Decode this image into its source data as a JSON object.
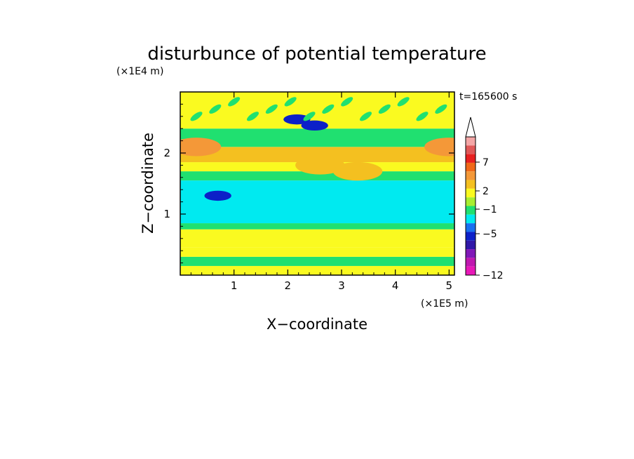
{
  "chart_data": {
    "type": "heatmap",
    "title": "disturbunce of potential temperature",
    "time_label": "t=165600 s",
    "xlabel": "X−coordinate",
    "ylabel": "Z−coordinate",
    "x_unit": "(×1E5 m)",
    "y_unit": "(×1E4 m)",
    "xlim": [
      0,
      5.1
    ],
    "ylim": [
      0,
      3.0
    ],
    "x_ticks": [
      "1",
      "2",
      "3",
      "4",
      "5"
    ],
    "y_ticks": [
      "1",
      "2"
    ],
    "colorbar": {
      "labels": [
        "7",
        "2",
        "−1",
        "−5",
        "−12"
      ],
      "colors": [
        "#f4a6a6",
        "#e05858",
        "#e82020",
        "#f06818",
        "#f49838",
        "#f4c020",
        "#fafa20",
        "#a8ee30",
        "#20e070",
        "#00eaf0",
        "#1870f0",
        "#0c20c8",
        "#3018a8",
        "#8018b8",
        "#c018b0",
        "#e818b8"
      ]
    },
    "bands": [
      {
        "z": [
          0.0,
          0.15
        ],
        "value": 1
      },
      {
        "z": [
          0.15,
          0.3
        ],
        "value": 0
      },
      {
        "z": [
          0.3,
          0.45
        ],
        "value": 1
      },
      {
        "z": [
          0.45,
          0.75
        ],
        "value": 1.5
      },
      {
        "z": [
          0.75,
          0.85
        ],
        "value": 0
      },
      {
        "z": [
          0.85,
          1.55
        ],
        "value": -1
      },
      {
        "z": [
          1.55,
          1.7
        ],
        "value": 0
      },
      {
        "z": [
          1.7,
          1.85
        ],
        "value": 1
      },
      {
        "z": [
          1.85,
          2.1
        ],
        "value": 2
      },
      {
        "z": [
          2.1,
          2.4
        ],
        "value": 0
      },
      {
        "z": [
          2.4,
          3.0
        ],
        "value": 1
      }
    ],
    "features": [
      {
        "x": 2.17,
        "z": 2.55,
        "value": -5
      },
      {
        "x": 2.5,
        "z": 2.45,
        "value": -5
      },
      {
        "x": 0.7,
        "z": 1.3,
        "value": -5
      },
      {
        "x": 0.3,
        "z": 2.1,
        "value": 3
      },
      {
        "x": 5.0,
        "z": 2.1,
        "value": 3
      },
      {
        "x": 2.6,
        "z": 1.8,
        "value": 2
      },
      {
        "x": 3.3,
        "z": 1.7,
        "value": 2
      }
    ]
  }
}
